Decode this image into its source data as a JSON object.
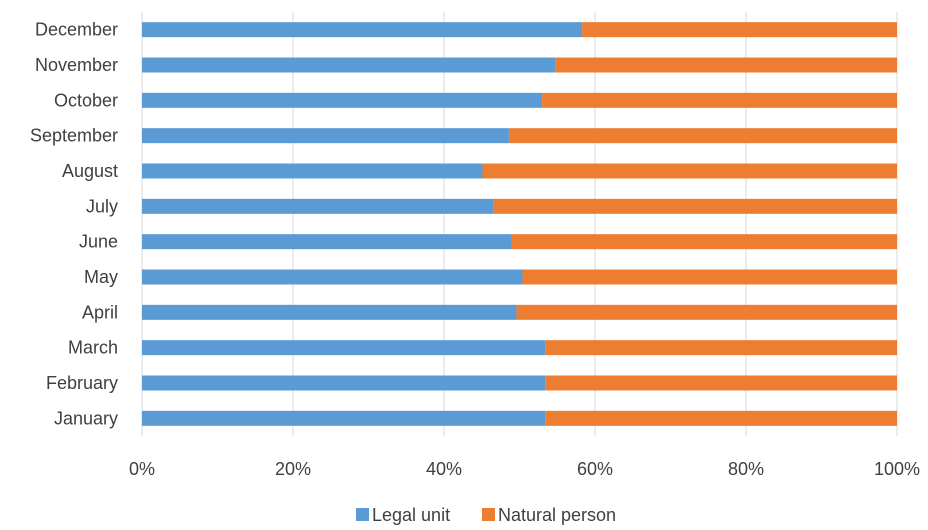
{
  "chart_data": {
    "type": "bar",
    "orientation": "horizontal",
    "stacked": "percent",
    "categories": [
      "December",
      "November",
      "October",
      "September",
      "August",
      "July",
      "June",
      "May",
      "April",
      "March",
      "February",
      "January"
    ],
    "series": [
      {
        "name": "Legal unit",
        "color": "#5b9bd5",
        "values": [
          58.3,
          54.8,
          53.0,
          48.6,
          45.1,
          46.5,
          49.0,
          50.4,
          49.6,
          53.4,
          53.4,
          53.4
        ]
      },
      {
        "name": "Natural person",
        "color": "#ed7d31",
        "values": [
          41.7,
          45.2,
          47.0,
          51.4,
          54.9,
          53.5,
          51.0,
          49.6,
          50.4,
          46.6,
          46.6,
          46.6
        ]
      }
    ],
    "xlim": [
      0,
      100
    ],
    "xticks": [
      "0%",
      "20%",
      "40%",
      "60%",
      "80%",
      "100%"
    ],
    "grid": true,
    "legend_position": "bottom",
    "title": "",
    "xlabel": "",
    "ylabel": ""
  }
}
